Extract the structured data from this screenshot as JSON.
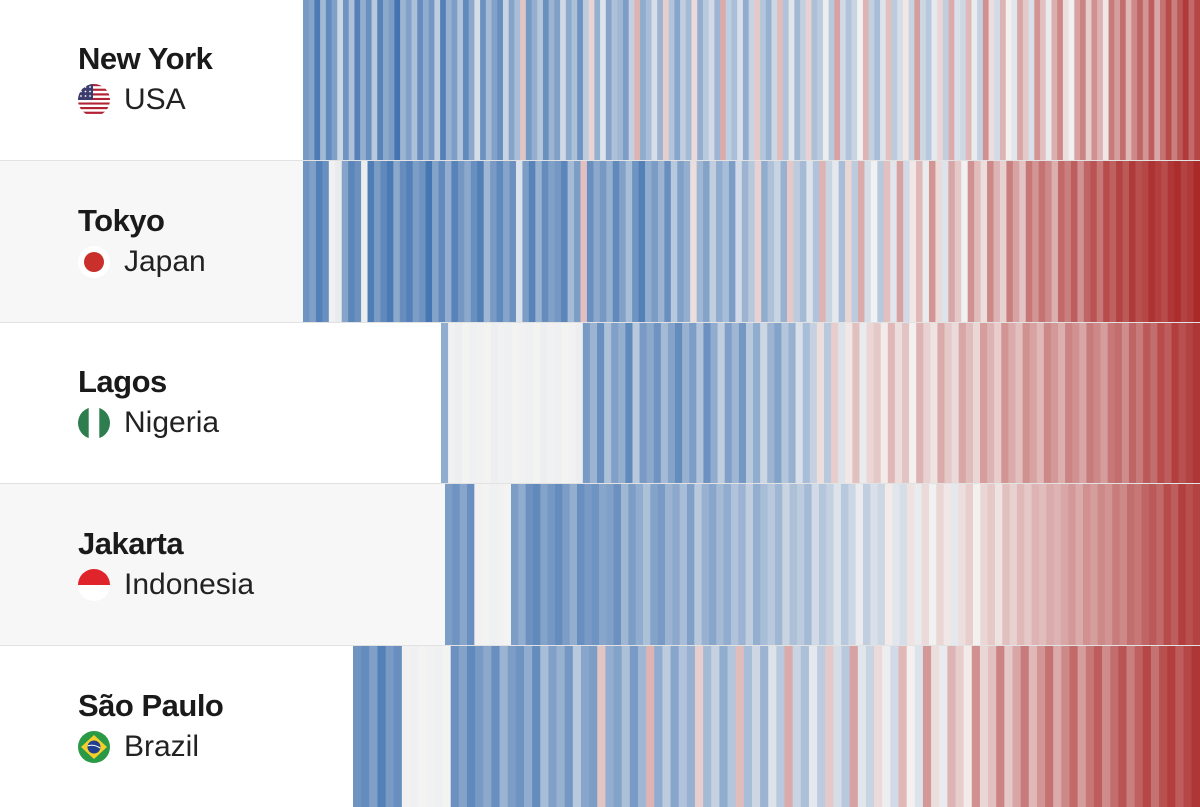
{
  "chart_data": {
    "type": "heatmap",
    "title": "",
    "xlabel": "",
    "ylabel": "",
    "stripe_span": [
      0,
      1
    ],
    "value_scale": {
      "min": -1,
      "max": 1,
      "cold_color": "#2b63a8",
      "neutral_color": "#f5f4f3",
      "warm_color": "#a51c1c"
    },
    "rows": [
      {
        "city": "New York",
        "country": "USA",
        "flag": "us-flag-icon",
        "record_start": 0.0,
        "anomalies": [
          -0.62,
          -0.55,
          -0.84,
          -0.41,
          -0.73,
          -0.58,
          -0.2,
          -0.66,
          -0.35,
          -0.79,
          -0.48,
          -0.69,
          -0.3,
          -0.77,
          -0.52,
          -0.61,
          -0.88,
          -0.44,
          -0.57,
          -0.36,
          -0.71,
          -0.5,
          -0.64,
          -0.27,
          -0.8,
          -0.46,
          -0.6,
          -0.33,
          -0.74,
          -0.52,
          -0.16,
          -0.68,
          -0.4,
          -0.57,
          -0.7,
          -0.22,
          -0.55,
          -0.38,
          0.22,
          -0.63,
          -0.48,
          -0.31,
          -0.69,
          -0.44,
          -0.58,
          -0.19,
          -0.52,
          -0.36,
          -0.66,
          -0.28,
          0.15,
          -0.47,
          -0.12,
          -0.55,
          -0.35,
          -0.42,
          -0.6,
          -0.24,
          0.3,
          -0.5,
          -0.38,
          -0.15,
          -0.44,
          0.18,
          -0.33,
          -0.54,
          -0.26,
          -0.4,
          0.12,
          -0.48,
          -0.3,
          -0.18,
          -0.43,
          0.34,
          -0.27,
          -0.37,
          -0.14,
          -0.5,
          -0.22,
          0.2,
          -0.32,
          -0.46,
          -0.2,
          0.26,
          -0.34,
          -0.1,
          -0.41,
          -0.25,
          0.16,
          -0.36,
          -0.28,
          -0.05,
          -0.3,
          0.38,
          -0.18,
          -0.34,
          -0.22,
          -0.02,
          0.3,
          -0.25,
          -0.38,
          -0.12,
          0.24,
          -0.28,
          -0.16,
          0.06,
          -0.22,
          0.4,
          -0.2,
          -0.3,
          -0.08,
          0.14,
          -0.26,
          0.34,
          -0.14,
          -0.2,
          0.28,
          -0.06,
          -0.24,
          0.46,
          0.1,
          -0.18,
          0.3,
          0.02,
          -0.1,
          0.36,
          0.2,
          -0.14,
          0.44,
          0.24,
          -0.06,
          0.32,
          0.5,
          0.1,
          -0.02,
          0.38,
          0.52,
          0.18,
          0.46,
          0.3,
          0.06,
          0.56,
          0.4,
          0.62,
          0.28,
          0.5,
          0.66,
          0.44,
          0.7,
          0.36,
          0.6,
          0.78,
          0.54,
          0.72,
          0.86,
          0.64,
          0.8
        ]
      },
      {
        "city": "Tokyo",
        "country": "Japan",
        "flag": "japan-flag-icon",
        "record_start": 0.0,
        "anomalies": [
          -0.66,
          -0.58,
          -0.8,
          -0.7,
          -0.02,
          -0.06,
          -0.55,
          -0.76,
          -0.68,
          -0.05,
          -0.82,
          -0.61,
          -0.74,
          -0.84,
          -0.52,
          -0.71,
          -0.79,
          -0.6,
          -0.67,
          -0.86,
          -0.56,
          -0.73,
          -0.49,
          -0.78,
          -0.64,
          -0.52,
          -0.7,
          -0.81,
          -0.42,
          -0.62,
          -0.74,
          -0.55,
          -0.68,
          -0.12,
          -0.6,
          -0.78,
          -0.46,
          -0.72,
          -0.58,
          -0.64,
          -0.76,
          -0.4,
          -0.6,
          0.24,
          -0.7,
          -0.52,
          -0.63,
          -0.47,
          -0.74,
          -0.57,
          -0.38,
          -0.66,
          -0.8,
          -0.5,
          -0.61,
          -0.44,
          -0.7,
          -0.3,
          -0.58,
          -0.48,
          0.1,
          -0.42,
          -0.56,
          -0.26,
          -0.5,
          -0.38,
          -0.6,
          -0.18,
          -0.44,
          -0.3,
          0.16,
          -0.5,
          -0.35,
          -0.22,
          -0.46,
          0.2,
          -0.28,
          -0.4,
          -0.12,
          -0.34,
          0.3,
          -0.22,
          -0.08,
          -0.38,
          0.14,
          -0.28,
          0.34,
          -0.16,
          -0.02,
          -0.3,
          0.24,
          -0.1,
          0.38,
          -0.18,
          0.06,
          0.28,
          -0.06,
          0.44,
          0.12,
          -0.12,
          0.36,
          0.2,
          -0.02,
          0.46,
          0.26,
          0.1,
          0.5,
          0.3,
          0.16,
          0.54,
          0.38,
          0.22,
          0.58,
          0.44,
          0.6,
          0.5,
          0.32,
          0.64,
          0.54,
          0.7,
          0.46,
          0.66,
          0.74,
          0.58,
          0.78,
          0.68,
          0.82,
          0.72,
          0.86,
          0.76,
          0.8,
          0.9,
          0.84,
          0.78,
          0.88,
          0.92,
          0.82,
          0.86,
          0.94
        ]
      },
      {
        "city": "Lagos",
        "country": "Nigeria",
        "flag": "nigeria-flag-icon",
        "record_start": 0.154,
        "anomalies": [
          -0.5,
          -0.02,
          -0.04,
          -0.01,
          -0.03,
          -0.02,
          -0.01,
          -0.04,
          -0.02,
          -0.03,
          -0.01,
          -0.02,
          -0.03,
          -0.01,
          -0.04,
          -0.02,
          -0.03,
          -0.01,
          -0.02,
          -0.04,
          -0.62,
          -0.44,
          -0.7,
          -0.36,
          -0.58,
          -0.48,
          -0.74,
          -0.3,
          -0.62,
          -0.52,
          -0.66,
          -0.4,
          -0.56,
          -0.72,
          -0.46,
          -0.6,
          -0.34,
          -0.68,
          -0.5,
          -0.26,
          -0.58,
          -0.42,
          -0.64,
          -0.3,
          -0.5,
          -0.2,
          -0.44,
          -0.56,
          -0.32,
          -0.46,
          -0.14,
          -0.38,
          -0.24,
          0.1,
          -0.3,
          0.18,
          -0.12,
          0.06,
          0.24,
          -0.06,
          0.14,
          0.2,
          0.04,
          0.28,
          0.1,
          0.22,
          0.02,
          0.3,
          0.16,
          0.08,
          0.34,
          0.2,
          0.12,
          0.36,
          0.26,
          0.14,
          0.4,
          0.3,
          0.18,
          0.44,
          0.34,
          0.24,
          0.46,
          0.38,
          0.28,
          0.5,
          0.42,
          0.32,
          0.52,
          0.46,
          0.36,
          0.56,
          0.5,
          0.4,
          0.58,
          0.62,
          0.48,
          0.66,
          0.56,
          0.72,
          0.62,
          0.78,
          0.7,
          0.84,
          0.76,
          0.82,
          0.88
        ]
      },
      {
        "city": "Jakarta",
        "country": "Indonesia",
        "flag": "indonesia-flag-icon",
        "record_start": 0.158,
        "anomalies": [
          -0.6,
          -0.66,
          -0.54,
          -0.7,
          -0.02,
          -0.01,
          -0.03,
          -0.02,
          -0.01,
          -0.6,
          -0.5,
          -0.68,
          -0.74,
          -0.56,
          -0.64,
          -0.72,
          -0.6,
          -0.48,
          -0.7,
          -0.62,
          -0.66,
          -0.54,
          -0.58,
          -0.68,
          -0.42,
          -0.6,
          -0.5,
          -0.36,
          -0.56,
          -0.62,
          -0.44,
          -0.52,
          -0.38,
          -0.58,
          -0.3,
          -0.46,
          -0.54,
          -0.4,
          -0.5,
          -0.34,
          -0.44,
          -0.26,
          -0.48,
          -0.38,
          -0.3,
          -0.42,
          -0.22,
          -0.36,
          -0.28,
          -0.4,
          -0.18,
          -0.32,
          -0.24,
          -0.12,
          -0.3,
          -0.2,
          -0.06,
          -0.26,
          -0.14,
          -0.2,
          0.04,
          -0.1,
          -0.16,
          0.08,
          -0.06,
          0.12,
          -0.02,
          0.14,
          0.06,
          -0.08,
          0.1,
          0.18,
          0.02,
          0.14,
          0.2,
          0.08,
          0.24,
          0.16,
          0.28,
          0.2,
          0.3,
          0.26,
          0.34,
          0.3,
          0.36,
          0.42,
          0.34,
          0.46,
          0.4,
          0.5,
          0.44,
          0.56,
          0.5,
          0.62,
          0.58,
          0.66,
          0.72,
          0.64,
          0.78,
          0.7,
          0.84,
          0.76,
          0.82
        ]
      },
      {
        "city": "São Paulo",
        "country": "Brazil",
        "flag": "brazil-flag-icon",
        "record_start": 0.056,
        "anomalies": [
          -0.66,
          -0.72,
          -0.58,
          -0.8,
          -0.62,
          -0.7,
          -0.02,
          -0.03,
          -0.01,
          -0.02,
          -0.03,
          -0.01,
          -0.68,
          -0.56,
          -0.74,
          -0.62,
          -0.52,
          -0.7,
          -0.44,
          -0.6,
          -0.66,
          -0.5,
          -0.72,
          -0.38,
          -0.58,
          -0.46,
          -0.64,
          -0.3,
          -0.54,
          -0.6,
          0.22,
          -0.48,
          -0.56,
          -0.36,
          -0.62,
          -0.42,
          0.3,
          -0.5,
          -0.28,
          -0.54,
          -0.34,
          -0.46,
          0.18,
          -0.4,
          -0.24,
          -0.5,
          -0.32,
          0.26,
          -0.38,
          -0.2,
          -0.44,
          -0.12,
          -0.3,
          0.34,
          -0.22,
          -0.36,
          -0.08,
          -0.28,
          0.2,
          -0.16,
          -0.3,
          0.38,
          -0.1,
          -0.22,
          0.12,
          -0.04,
          -0.18,
          0.28,
          0.02,
          -0.12,
          0.42,
          0.1,
          -0.06,
          0.3,
          0.18,
          0.04,
          0.46,
          0.14,
          0.24,
          0.52,
          0.2,
          0.36,
          0.56,
          0.28,
          0.44,
          0.6,
          0.34,
          0.5,
          0.64,
          0.4,
          0.58,
          0.7,
          0.48,
          0.62,
          0.74,
          0.54,
          0.68,
          0.8,
          0.6,
          0.76,
          0.84,
          0.7,
          0.8,
          0.88
        ]
      }
    ]
  }
}
